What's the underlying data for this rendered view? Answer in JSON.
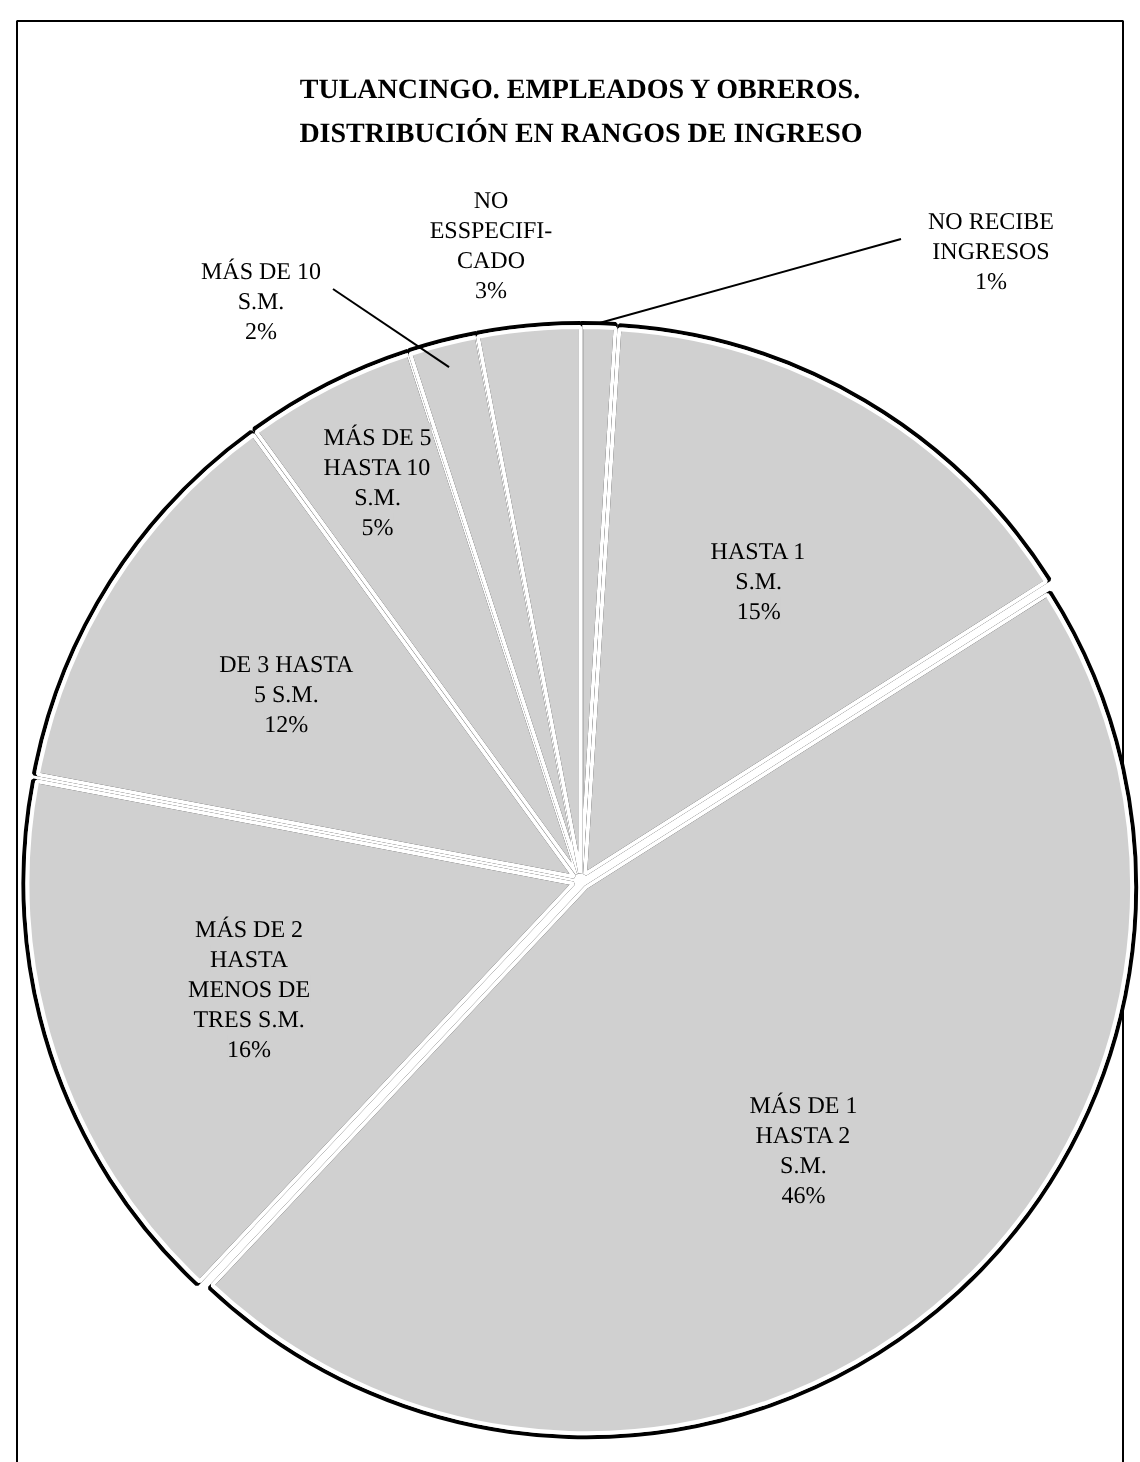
{
  "chart_data": {
    "type": "pie",
    "title": "TULANCINGO. EMPLEADOS Y OBREROS. DISTRIBUCIÓN EN RANGOS DE INGRESO",
    "categories": [
      "NO RECIBE INGRESOS",
      "HASTA 1 S.M.",
      "MÁS DE 1 HASTA 2 S.M.",
      "MÁS DE 2 HASTA MENOS DE TRES S.M.",
      "DE 3 HASTA 5 S.M.",
      "MÁS DE 5 HASTA 10 S.M.",
      "MÁS DE 10 S.M.",
      "NO ESSPECIFI-CADO"
    ],
    "values": [
      1,
      15,
      46,
      16,
      12,
      5,
      2,
      3
    ],
    "colors": [
      "#d0d0d0",
      "#d0d0d0",
      "#d0d0d0",
      "#d0d0d0",
      "#d0d0d0",
      "#d0d0d0",
      "#d0d0d0",
      "#d0d0d0"
    ],
    "value_labels": [
      "1%",
      "15%",
      "46%",
      "16%",
      "12%",
      "5%",
      "2%",
      "3%"
    ]
  }
}
